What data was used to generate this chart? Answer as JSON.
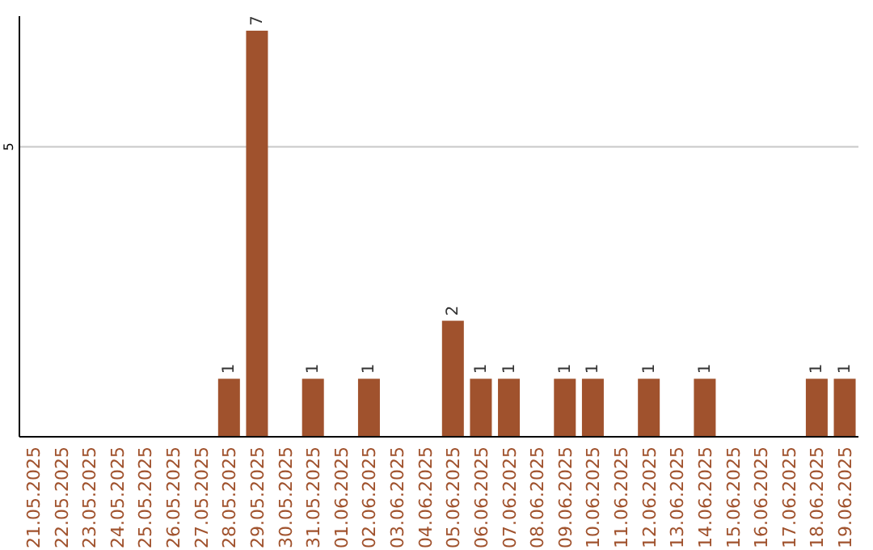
{
  "chart_data": {
    "type": "bar",
    "categories": [
      "21.05.2025",
      "22.05.2025",
      "23.05.2025",
      "24.05.2025",
      "25.05.2025",
      "26.05.2025",
      "27.05.2025",
      "28.05.2025",
      "29.05.2025",
      "30.05.2025",
      "31.05.2025",
      "01.06.2025",
      "02.06.2025",
      "03.06.2025",
      "04.06.2025",
      "05.06.2025",
      "06.06.2025",
      "07.06.2025",
      "08.06.2025",
      "09.06.2025",
      "10.06.2025",
      "11.06.2025",
      "12.06.2025",
      "13.06.2025",
      "14.06.2025",
      "15.06.2025",
      "16.06.2025",
      "17.06.2025",
      "18.06.2025",
      "19.06.2025"
    ],
    "values": [
      0,
      0,
      0,
      0,
      0,
      0,
      0,
      1,
      7,
      0,
      1,
      0,
      1,
      0,
      0,
      2,
      1,
      1,
      0,
      1,
      1,
      0,
      1,
      0,
      1,
      0,
      0,
      0,
      1,
      1
    ],
    "value_labels": [
      null,
      null,
      null,
      null,
      null,
      null,
      null,
      "1",
      "7",
      null,
      "1",
      null,
      "1",
      null,
      null,
      "2",
      "1",
      "1",
      null,
      "1",
      "1",
      null,
      "1",
      null,
      "1",
      null,
      null,
      null,
      "1",
      "1"
    ],
    "color": "#a0522d",
    "ylim": [
      0,
      7.25
    ],
    "yticks": [
      5
    ],
    "grid": "y"
  }
}
